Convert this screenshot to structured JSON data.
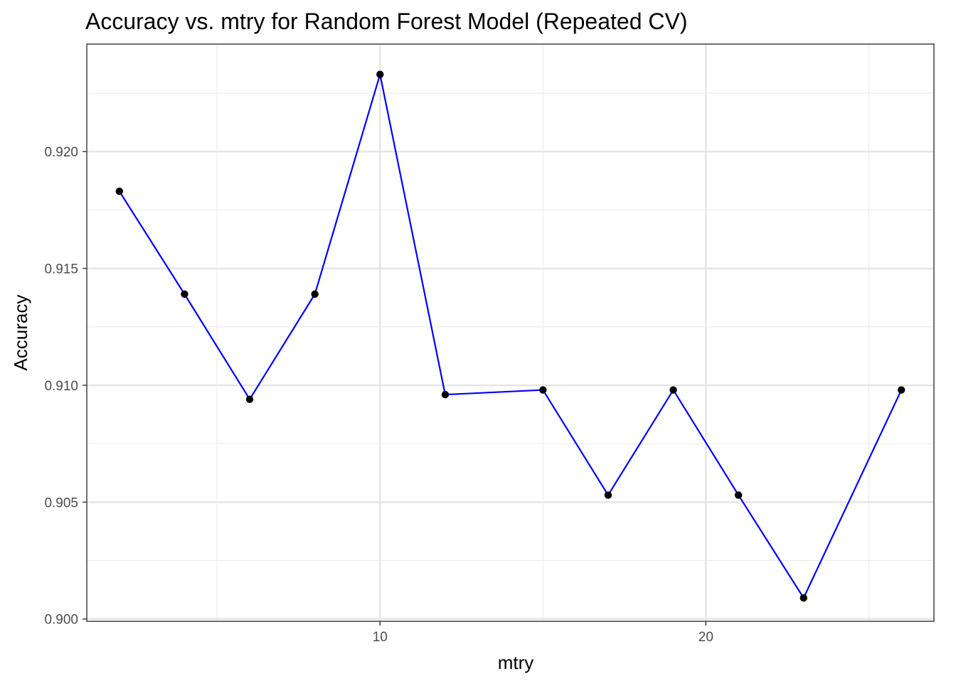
{
  "chart_data": {
    "type": "line",
    "title": "Accuracy vs. mtry for Random Forest Model (Repeated CV)",
    "xlabel": "mtry",
    "ylabel": "Accuracy",
    "xlim": [
      1,
      27
    ],
    "ylim": [
      0.8999,
      0.9246
    ],
    "x_ticks": [
      10,
      20
    ],
    "x_tick_labels": [
      "10",
      "20"
    ],
    "x_minor_ticks": [
      5,
      15,
      25
    ],
    "y_ticks": [
      0.9,
      0.905,
      0.91,
      0.915,
      0.92
    ],
    "y_tick_labels": [
      "0.900",
      "0.905",
      "0.910",
      "0.915",
      "0.920"
    ],
    "y_minor_ticks": [
      0.9025,
      0.9075,
      0.9125,
      0.9175,
      0.9225
    ],
    "grid": true,
    "legend": "none",
    "series": [
      {
        "x": [
          2,
          4,
          6,
          8,
          10,
          12,
          15,
          17,
          19,
          21,
          23,
          26
        ],
        "y": [
          0.9183,
          0.9139,
          0.9094,
          0.9139,
          0.9233,
          0.9096,
          0.9098,
          0.9053,
          0.9098,
          0.9053,
          0.9009,
          0.9098
        ],
        "line_color": "#0000ff",
        "point_color": "#000000"
      }
    ]
  }
}
